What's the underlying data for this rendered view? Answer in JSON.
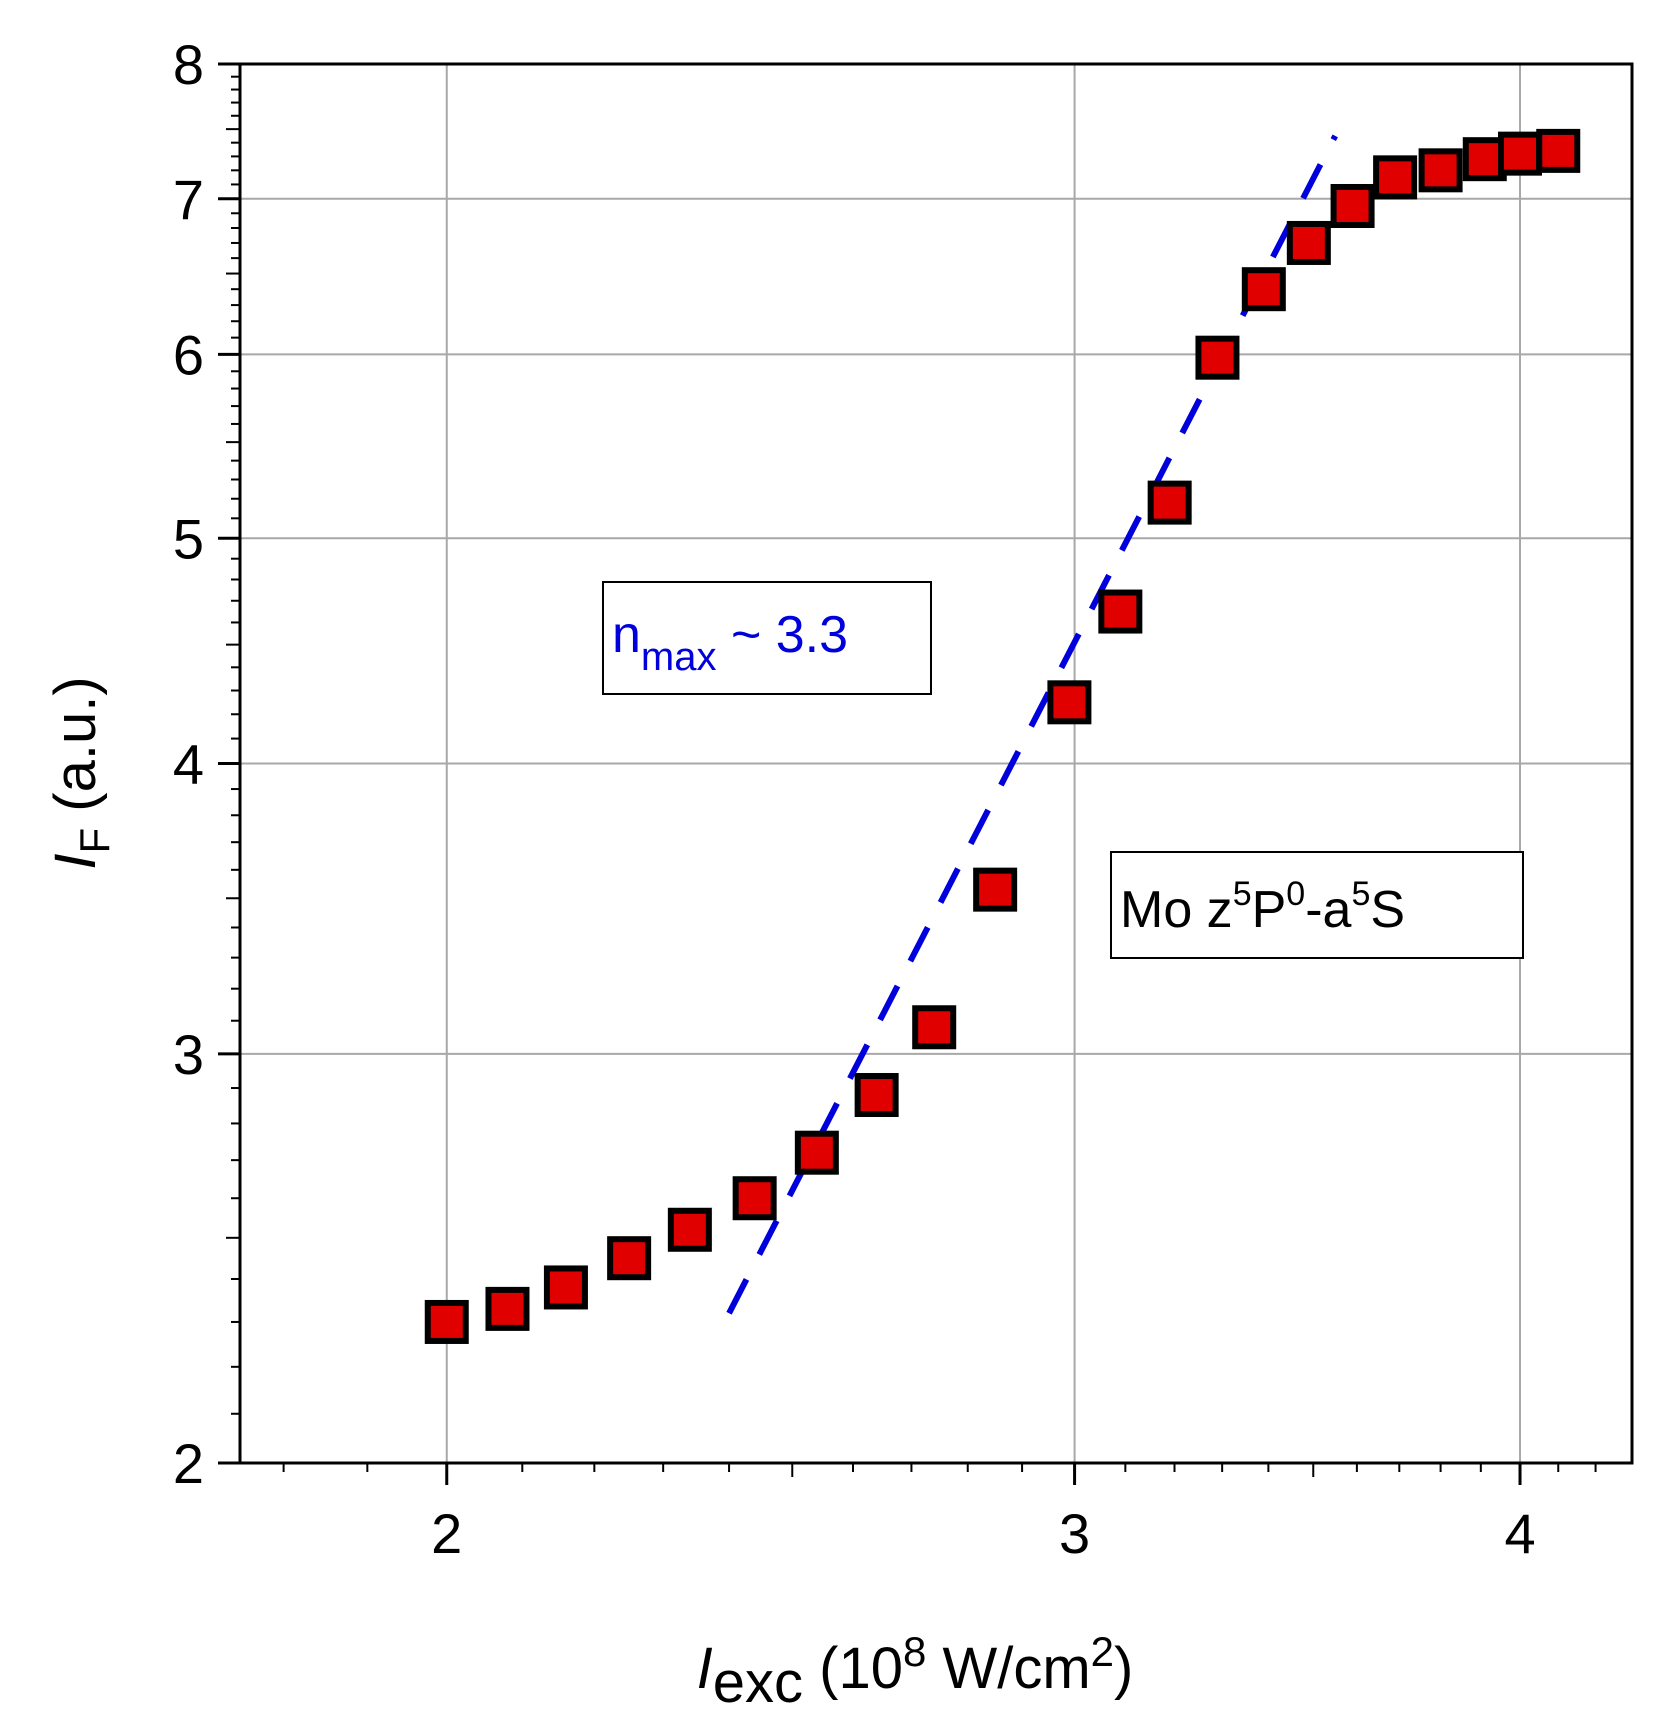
{
  "chart_data": {
    "type": "scatter",
    "xscale": "log",
    "yscale": "log",
    "xlim": [
      1.75,
      4.3
    ],
    "ylim": [
      2,
      8
    ],
    "xticks": [
      {
        "value": 2,
        "label": "2"
      },
      {
        "value": 3,
        "label": "3"
      },
      {
        "value": 4,
        "label": "4"
      }
    ],
    "yticks": [
      {
        "value": 2,
        "label": "2"
      },
      {
        "value": 3,
        "label": "3"
      },
      {
        "value": 4,
        "label": "4"
      },
      {
        "value": 5,
        "label": "5"
      },
      {
        "value": 6,
        "label": "6"
      },
      {
        "value": 7,
        "label": "7"
      },
      {
        "value": 8,
        "label": "8"
      }
    ],
    "xlabel": {
      "symbol": "I",
      "subscript": "exc",
      "units_prefix": " (10",
      "units_exp": "8",
      "units_mid": " W/cm",
      "units_exp2": "2",
      "units_suffix": ")"
    },
    "ylabel": {
      "symbol": "I",
      "subscript": "F",
      "units": " (a.u.)"
    },
    "grid": true,
    "marker_color": "#e00000",
    "fit_color": "#0000dd",
    "series": [
      {
        "name": "data",
        "x": [
          2.0,
          2.08,
          2.16,
          2.25,
          2.34,
          2.44,
          2.54,
          2.64,
          2.74,
          2.85,
          2.99,
          3.09,
          3.19,
          3.29,
          3.39,
          3.49,
          3.59,
          3.69,
          3.8,
          3.91,
          4.0,
          4.1
        ],
        "y": [
          2.3,
          2.33,
          2.38,
          2.45,
          2.52,
          2.6,
          2.72,
          2.88,
          3.08,
          3.53,
          4.25,
          4.65,
          5.18,
          5.98,
          6.4,
          6.7,
          6.95,
          7.15,
          7.2,
          7.28,
          7.32,
          7.34
        ]
      }
    ],
    "fit_line": {
      "x": [
        2.4,
        3.55
      ],
      "y": [
        2.32,
        7.45
      ],
      "style": "dashed"
    },
    "annotations": [
      {
        "id": "nmax",
        "base": "n",
        "sub": "max",
        "rest": " ~ 3.3",
        "color": "#0000dd"
      },
      {
        "id": "transition",
        "parts": [
          "Mo z",
          "5",
          "P",
          "0",
          "-a",
          "5",
          "S"
        ],
        "color": "#000000"
      }
    ]
  }
}
